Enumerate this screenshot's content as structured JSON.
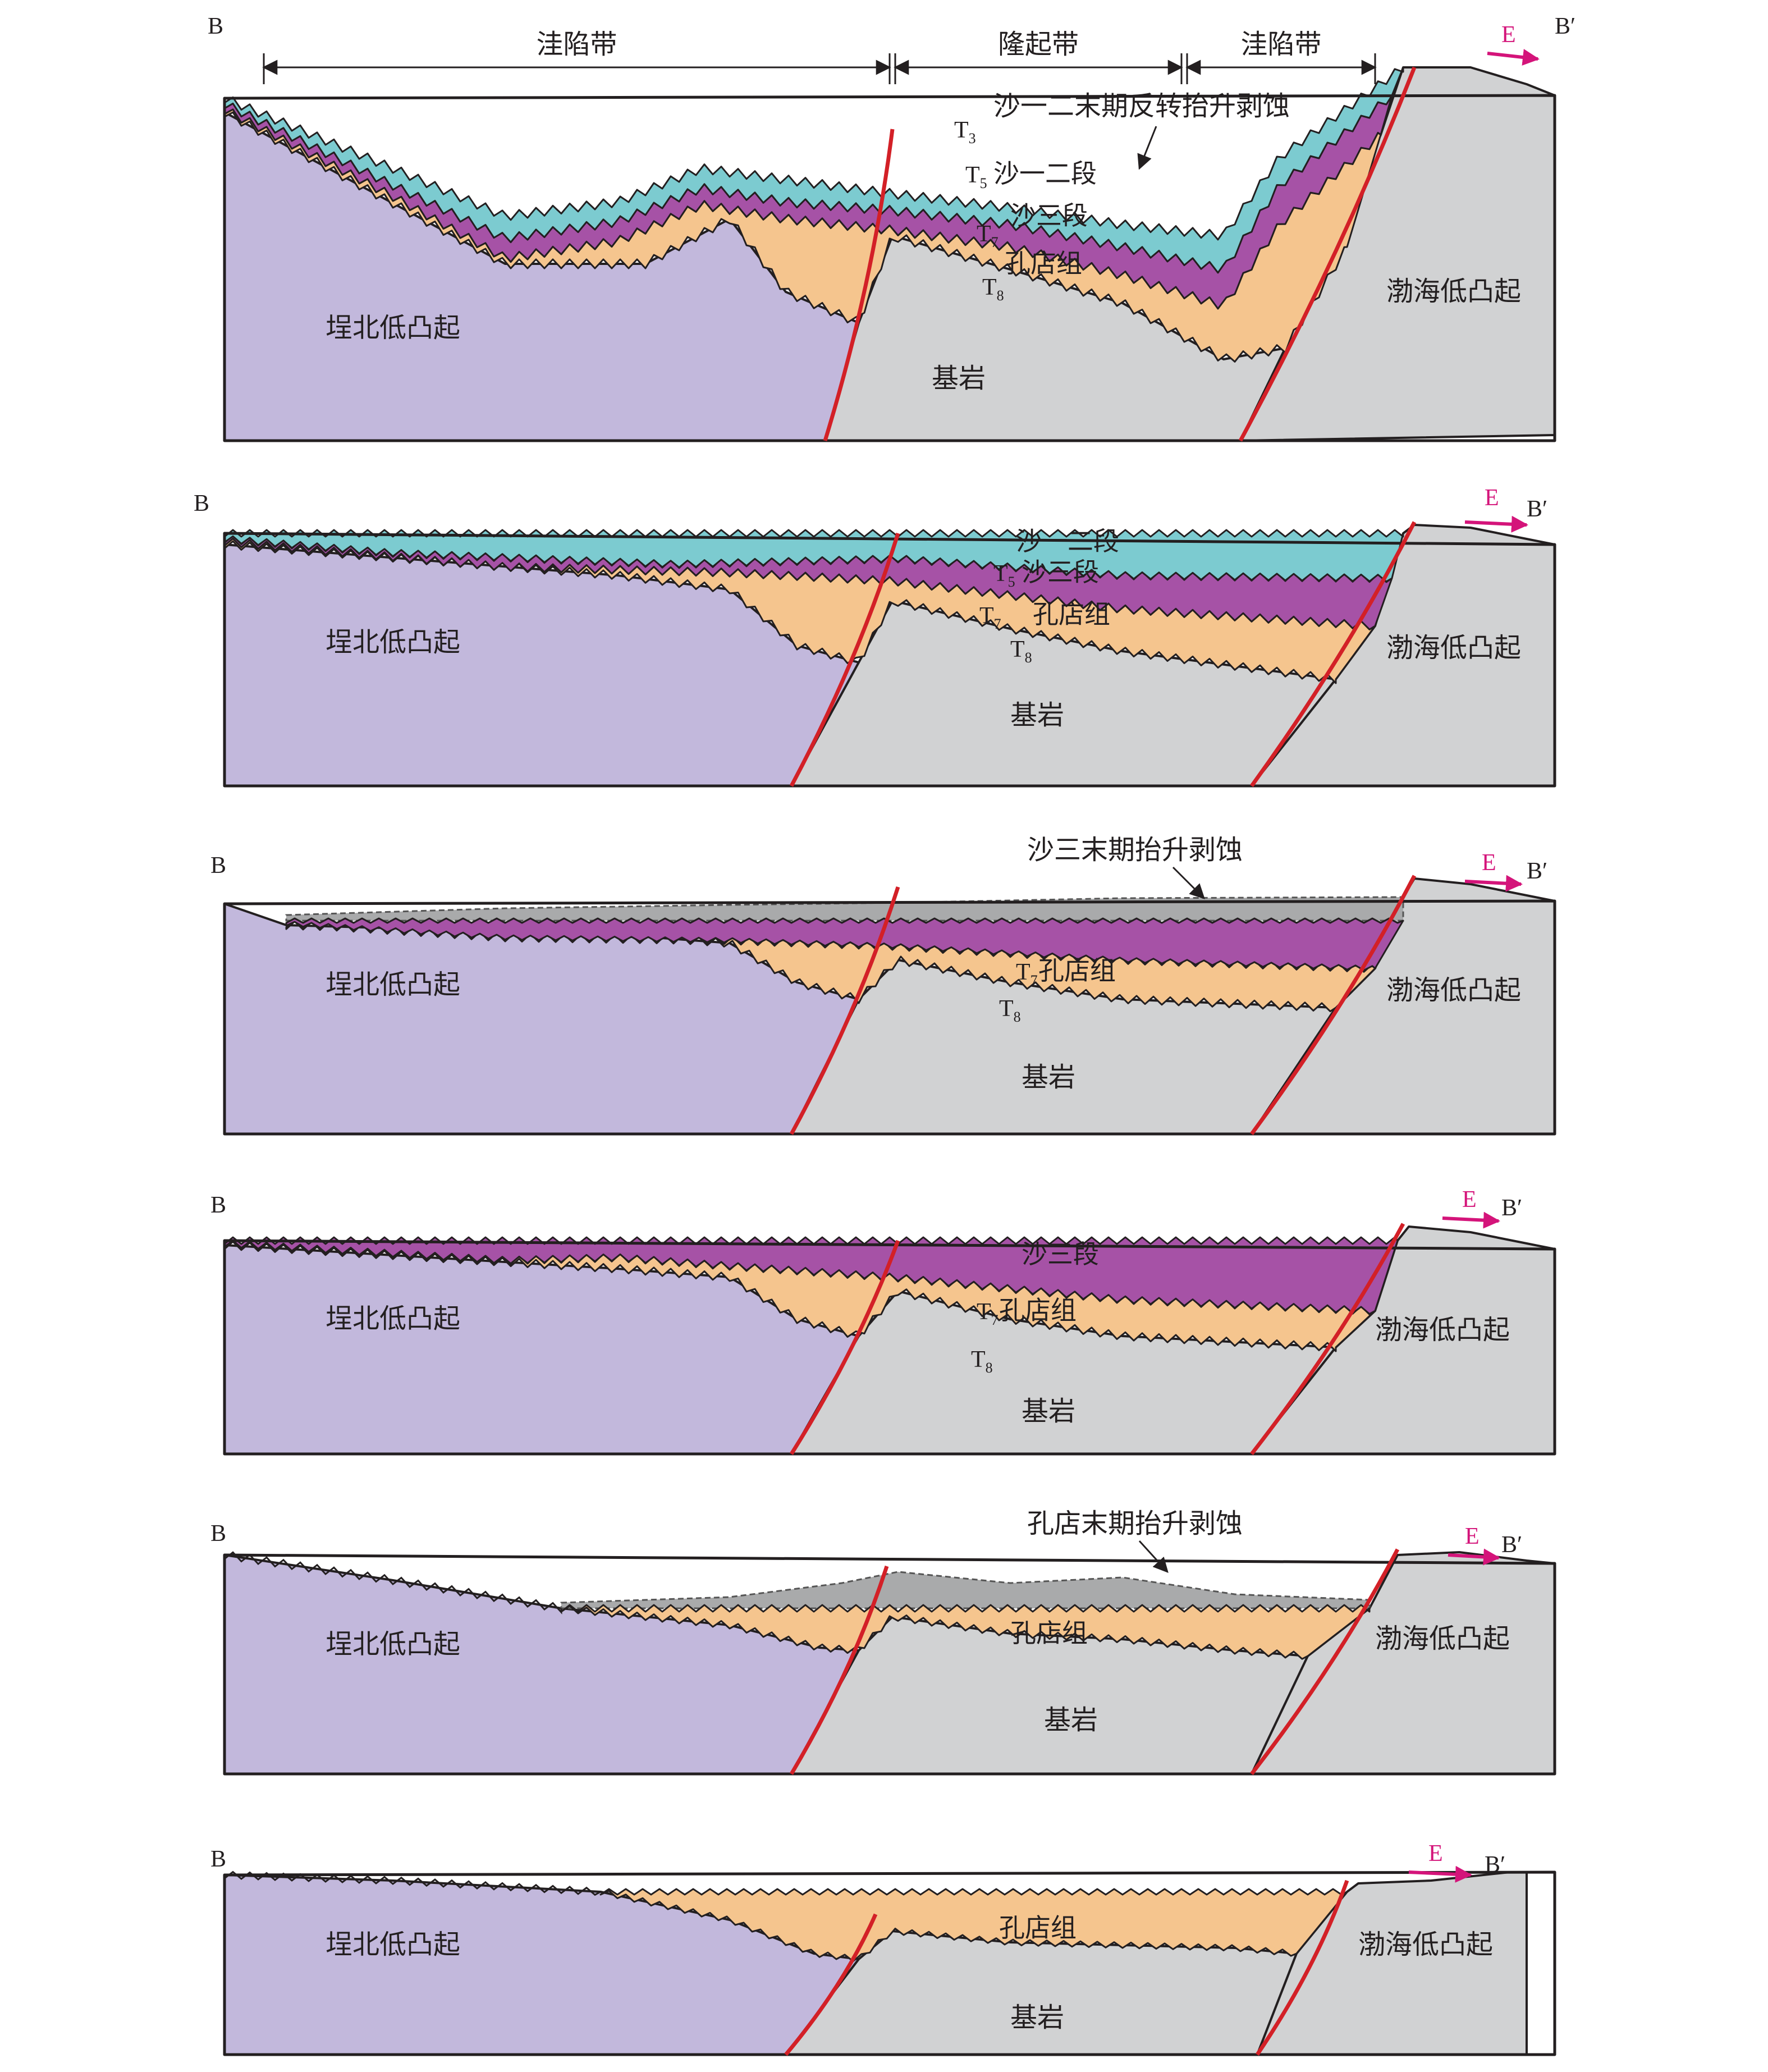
{
  "direction": {
    "west": "B",
    "east": "B′",
    "arrow": "E"
  },
  "colors": {
    "left_uplift": "#c2b8dc",
    "basement": "#d1d2d3",
    "kongdian": "#f5c58e",
    "sha3": "#a652a6",
    "sha12": "#7ccbd0",
    "eroded": "#a9aaab",
    "fault": "#d32027",
    "arrow": "#d4147a",
    "outline": "#231f20"
  },
  "panels": [
    {
      "zones": {
        "left": "洼陷带",
        "middle": "隆起带",
        "right": "洼陷带"
      },
      "event": "沙一二末期反转抬升剥蚀",
      "labels": {
        "left_uplift": "埕北低凸起",
        "right_uplift": "渤海低凸起",
        "basement": "基岩",
        "sha12": "沙一二段",
        "sha3": "沙三段",
        "kongdian": "孔店组"
      },
      "horizons": [
        "T3",
        "T5",
        "T7",
        "T8"
      ]
    },
    {
      "labels": {
        "left_uplift": "埕北低凸起",
        "right_uplift": "渤海低凸起",
        "basement": "基岩",
        "sha12": "沙一二段",
        "sha3": "沙三段",
        "kongdian": "孔店组"
      },
      "horizons": [
        "T5",
        "T7",
        "T8"
      ]
    },
    {
      "event": "沙三末期抬升剥蚀",
      "labels": {
        "left_uplift": "埕北低凸起",
        "right_uplift": "渤海低凸起",
        "basement": "基岩",
        "kongdian": "孔店组"
      },
      "horizons": [
        "T7",
        "T8"
      ]
    },
    {
      "labels": {
        "left_uplift": "埕北低凸起",
        "right_uplift": "渤海低凸起",
        "basement": "基岩",
        "sha3": "沙三段",
        "kongdian": "孔店组"
      },
      "horizons": [
        "T7",
        "T8"
      ]
    },
    {
      "event": "孔店末期抬升剥蚀",
      "labels": {
        "left_uplift": "埕北低凸起",
        "right_uplift": "渤海低凸起",
        "basement": "基岩",
        "kongdian": "孔店组"
      }
    },
    {
      "labels": {
        "left_uplift": "埕北低凸起",
        "right_uplift": "渤海低凸起",
        "basement": "基岩",
        "kongdian": "孔店组"
      }
    }
  ]
}
